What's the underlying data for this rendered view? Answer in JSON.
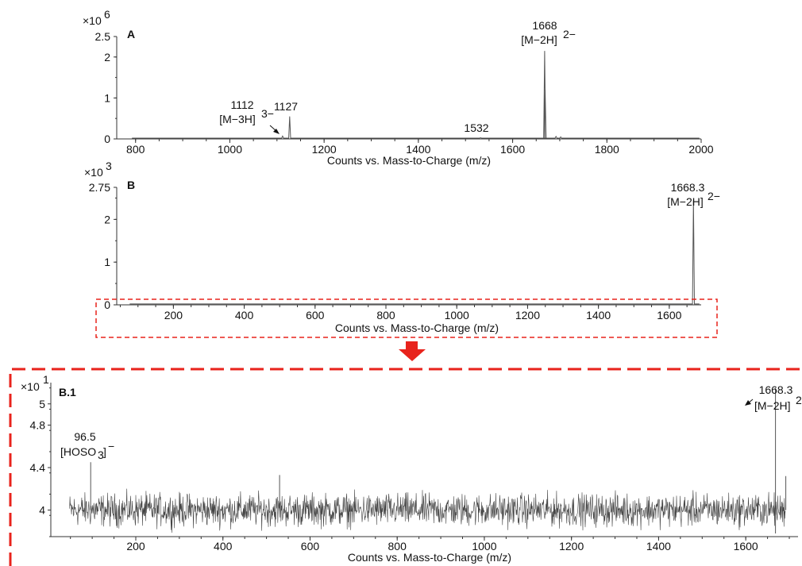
{
  "colors": {
    "trace": "#555555",
    "axis": "#333333",
    "highlight": "#e8231c"
  },
  "chart_data": [
    {
      "id": "A",
      "type": "line",
      "panel_label": "A",
      "multiplier": "×10",
      "multiplier_exp": "6",
      "xlabel": "Counts vs. Mass-to-Charge (m/z)",
      "xlim": [
        760,
        2000
      ],
      "ylim": [
        0,
        2.5
      ],
      "xticks": [
        "800",
        "1000",
        "1200",
        "1400",
        "1600",
        "1800",
        "2000"
      ],
      "xtick_values": [
        800,
        1000,
        1200,
        1400,
        1600,
        1800,
        2000
      ],
      "yticks": [
        "0",
        "1",
        "2",
        "2.5"
      ],
      "ytick_values": [
        0,
        1,
        2,
        2.5
      ],
      "baseline": 0.02,
      "peaks": [
        [
          1112,
          0.07
        ],
        [
          1127,
          0.55
        ],
        [
          1532,
          0.03
        ],
        [
          1668,
          2.15
        ],
        [
          1669,
          1.2
        ],
        [
          1692,
          0.06
        ],
        [
          1702,
          0.05
        ]
      ],
      "annotations": [
        {
          "x": 1112,
          "lines": [
            "1112",
            "[M−3H]",
            "3−"
          ]
        },
        {
          "x": 1127,
          "lines": [
            "1127"
          ]
        },
        {
          "x": 1532,
          "lines": [
            "1532"
          ]
        },
        {
          "x": 1668,
          "lines": [
            "1668",
            "[M−2H]",
            "2−"
          ]
        }
      ]
    },
    {
      "id": "B",
      "type": "line",
      "panel_label": "B",
      "multiplier": "×10",
      "multiplier_exp": "3",
      "xlabel": "Counts vs. Mass-to-Charge (m/z)",
      "xlim": [
        40,
        1690
      ],
      "ylim": [
        0,
        2.75
      ],
      "xticks": [
        "200",
        "400",
        "600",
        "800",
        "1000",
        "1200",
        "1400",
        "1600"
      ],
      "xtick_values": [
        200,
        400,
        600,
        800,
        1000,
        1200,
        1400,
        1600
      ],
      "yticks": [
        "0",
        "1",
        "2",
        "2.75"
      ],
      "ytick_values": [
        0,
        1,
        2,
        2.75
      ],
      "baseline": 0.02,
      "peaks": [
        [
          1668.3,
          2.45
        ]
      ],
      "annotations": [
        {
          "x": 1668.3,
          "lines": [
            "1668.3",
            "[M−2H]",
            "2−"
          ]
        }
      ]
    },
    {
      "id": "B.1",
      "type": "line",
      "panel_label": "B.1",
      "multiplier": "×10",
      "multiplier_exp": "1",
      "xlabel": "Counts vs. Mass-to-Charge (m/z)",
      "xlim": [
        5,
        1720
      ],
      "ylim": [
        3.75,
        5.2
      ],
      "xticks": [
        "200",
        "400",
        "600",
        "800",
        "1000",
        "1200",
        "1400",
        "1600"
      ],
      "xtick_values": [
        200,
        400,
        600,
        800,
        1000,
        1200,
        1400,
        1600
      ],
      "yticks": [
        "4",
        "4.4",
        "4.8",
        "5"
      ],
      "ytick_values": [
        4,
        4.4,
        4.8,
        5
      ],
      "noise": {
        "x_start": 48,
        "x_end": 1692,
        "mean": 4.0,
        "amplitude": 0.1
      },
      "peaks": [
        [
          96.5,
          4.45
        ],
        [
          530,
          4.33
        ],
        [
          1668.3,
          5.15
        ],
        [
          1692,
          4.32
        ]
      ],
      "annotations": [
        {
          "x": 96.5,
          "lines": [
            "96.5",
            "[HOSO",
            "3",
            "]",
            "−"
          ]
        },
        {
          "x": 1668.3,
          "lines": [
            "1668.3",
            "[M−2H]",
            "2−"
          ]
        }
      ]
    }
  ]
}
